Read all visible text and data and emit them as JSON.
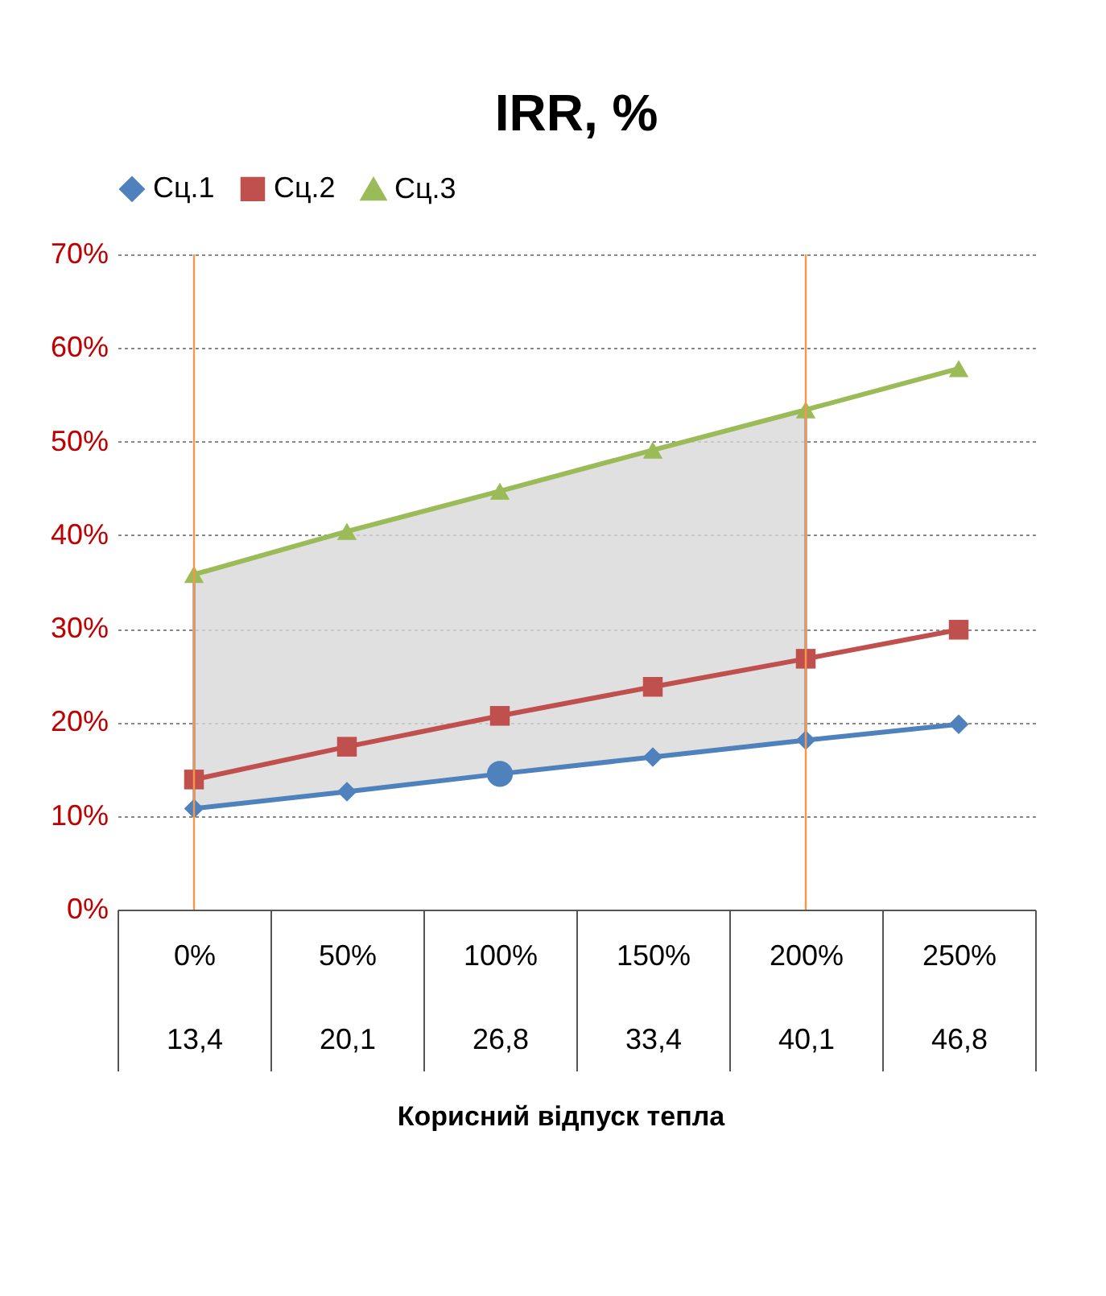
{
  "chart_data": {
    "type": "line",
    "title": "IRR, %",
    "annotations": [
      "Корисний відпуск тепла"
    ],
    "categories": [
      "0%\n13,4",
      "50%\n20,1",
      "100%\n26,8",
      "150%\n33,4",
      "200%\n40,1",
      "250%\n46,8"
    ],
    "series": [
      {
        "name": "Сц.1",
        "color": "#4f81bd",
        "marker": "diamond",
        "values": [
          10.8,
          12.6,
          14.5,
          16.3,
          18.1,
          19.8
        ]
      },
      {
        "name": "Сц.2",
        "color": "#c0504d",
        "marker": "square",
        "values": [
          13.9,
          17.4,
          20.7,
          23.8,
          26.8,
          29.9
        ],
        "lower": [
          10.8,
          12.6,
          14.5,
          16.3,
          18.1,
          null
        ],
        "upper": [
          35.8,
          40.4,
          44.7,
          49.1,
          53.4,
          null
        ]
      },
      {
        "name": "Сц.3",
        "color": "#9bbb59",
        "marker": "triangle",
        "values": [
          35.8,
          40.4,
          44.7,
          49.1,
          53.4,
          57.8
        ]
      },
      {
        "type": "scatter",
        "color": "#4f81bd",
        "marker": "circle",
        "x": [
          "100%\n26,8"
        ],
        "values": [
          14.5
        ]
      }
    ],
    "ylim": [
      0,
      70
    ],
    "yticks": [
      {
        "value": 0,
        "label": "0%"
      },
      {
        "value": 10,
        "label": "10%"
      },
      {
        "value": 20,
        "label": "20%"
      },
      {
        "value": 30,
        "label": "30%"
      },
      {
        "value": 40,
        "label": "40%"
      },
      {
        "value": 50,
        "label": "50%"
      },
      {
        "value": 60,
        "label": "60%"
      },
      {
        "value": 70,
        "label": "70%"
      }
    ],
    "grid": "y",
    "legend": "top",
    "line_style": "solid",
    "ref_lines": [
      {
        "axis": "x",
        "value": "0%\n13,4",
        "color": "#f79646"
      },
      {
        "axis": "x",
        "value": "200%\n40,1",
        "color": "#f79646"
      }
    ]
  }
}
